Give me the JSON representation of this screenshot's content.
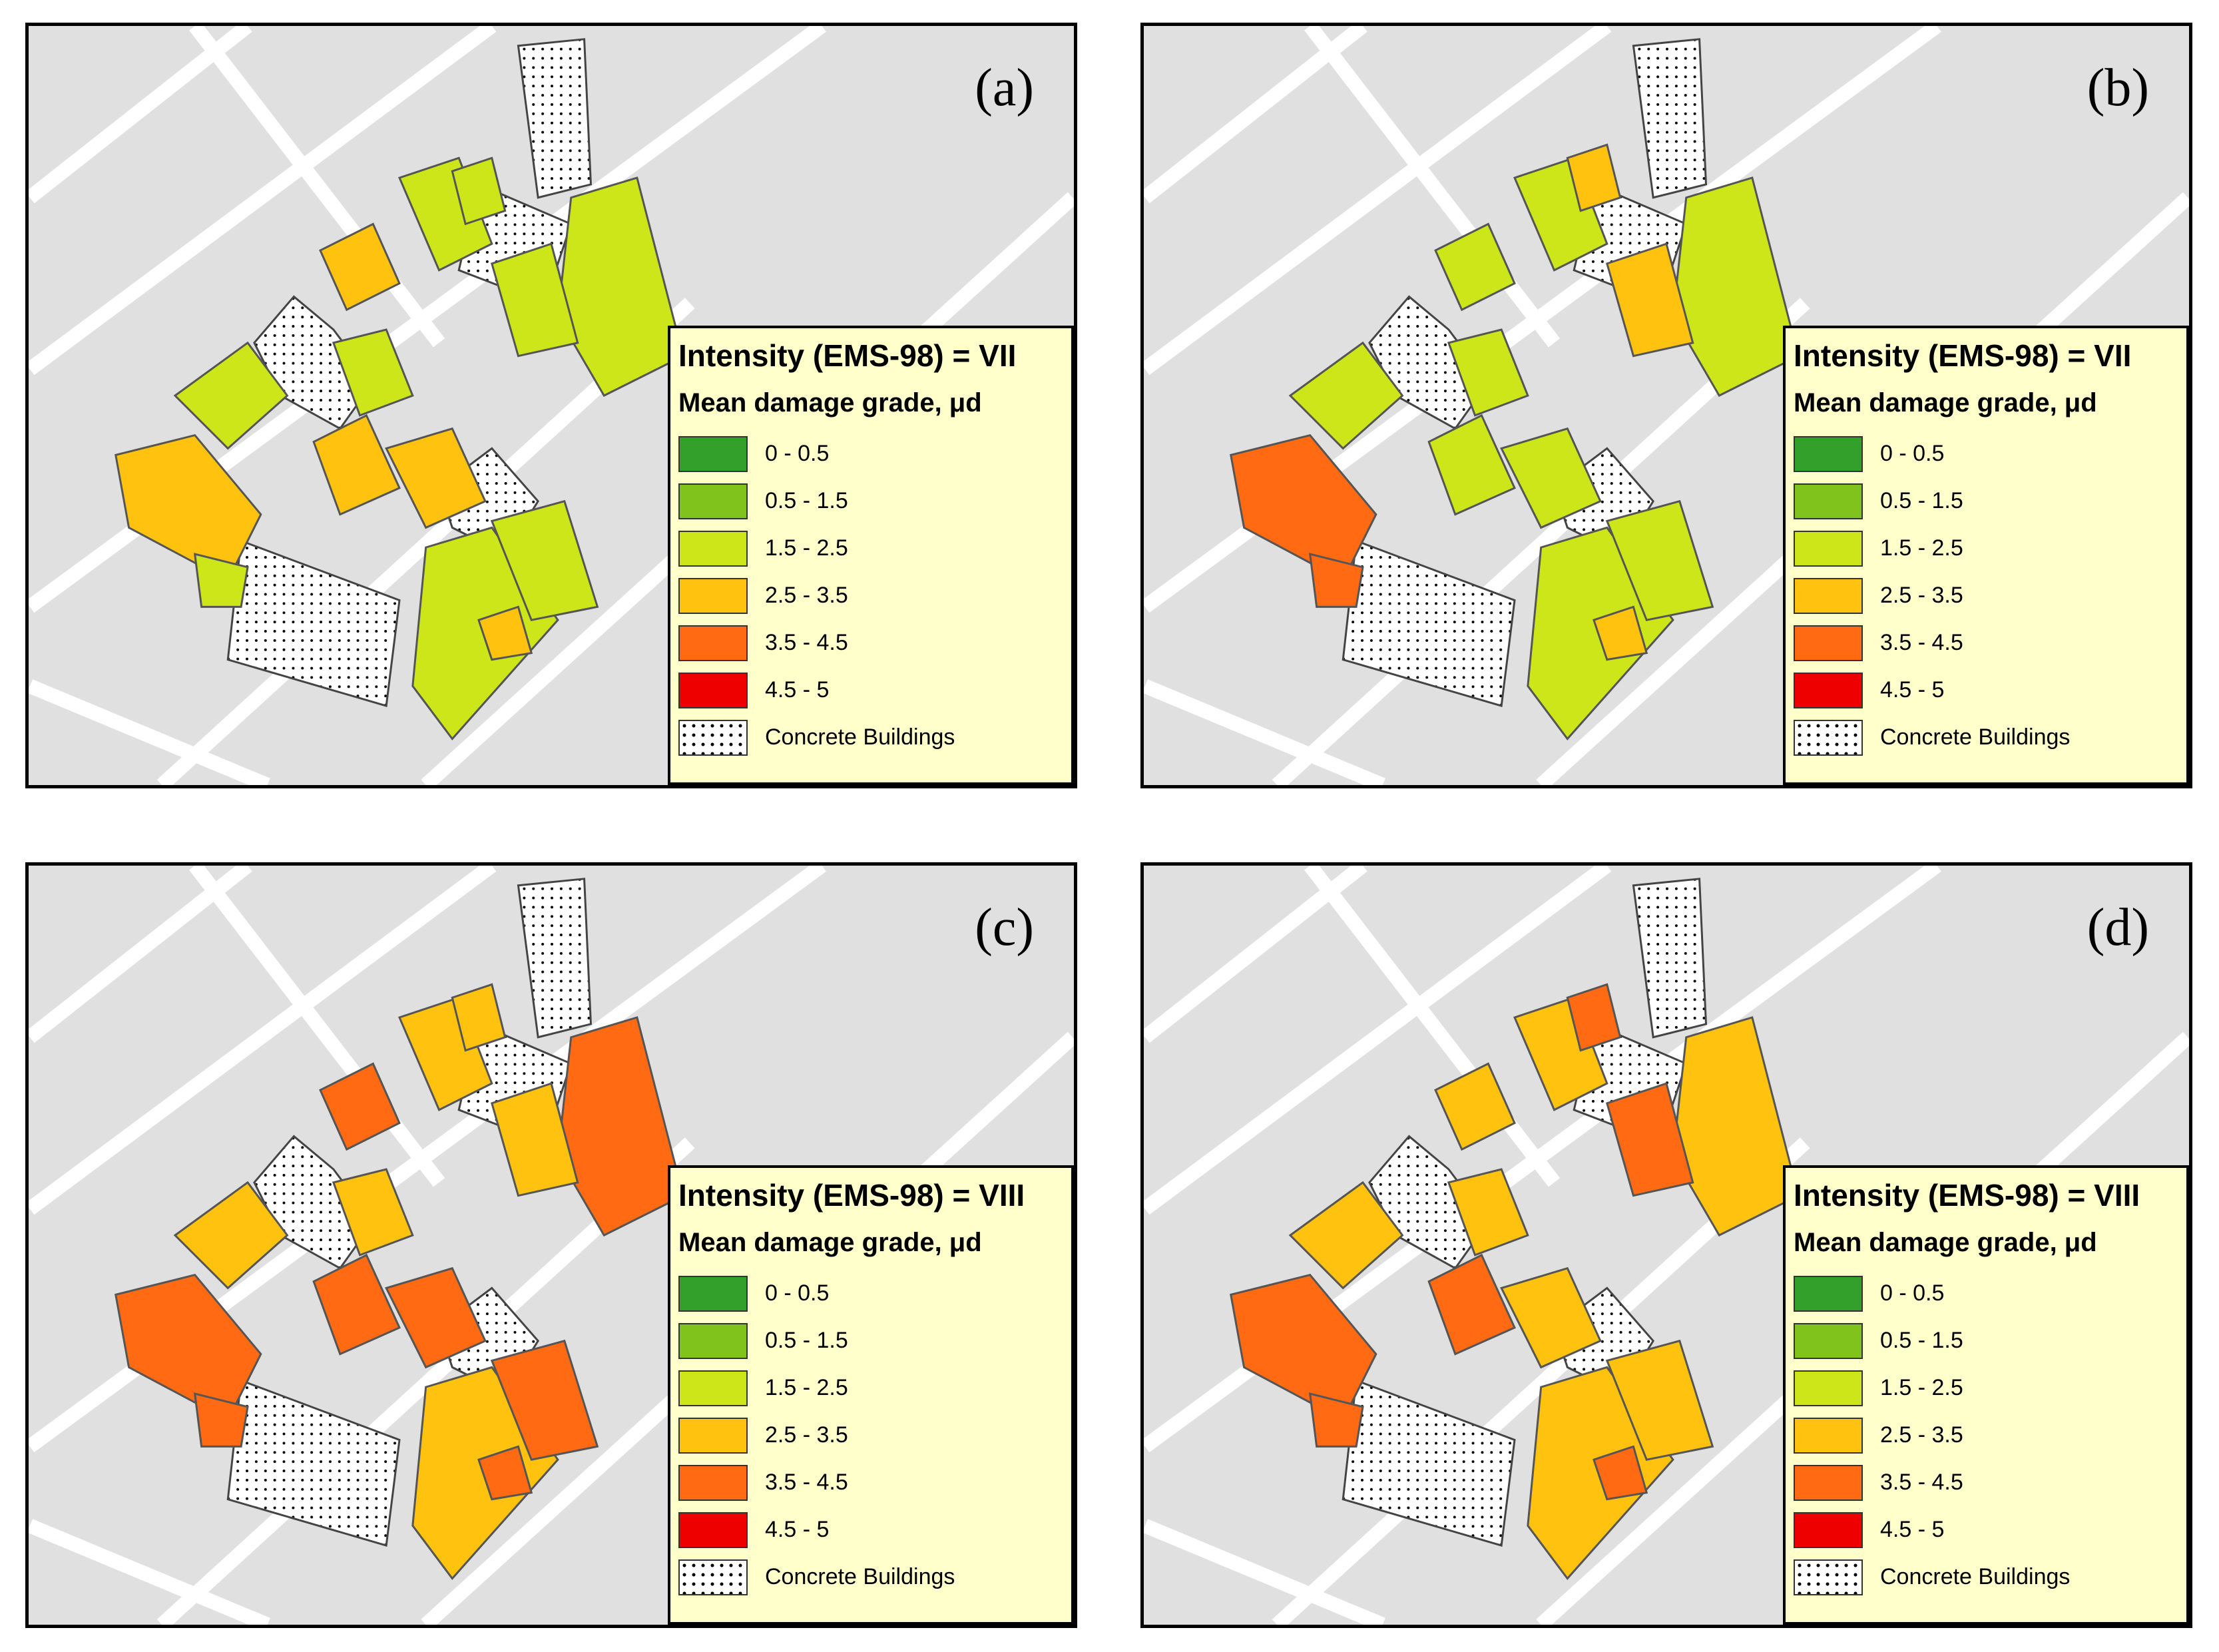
{
  "legend": {
    "title_vii": "Intensity (EMS-98) = VII",
    "title_viii": "Intensity (EMS-98) = VIII",
    "subtitle": "Mean damage grade, μd",
    "classes": [
      {
        "label": "0 - 0.5",
        "color": "#33a02c"
      },
      {
        "label": "0.5 - 1.5",
        "color": "#7fc31c"
      },
      {
        "label": "1.5 - 2.5",
        "color": "#cce619"
      },
      {
        "label": "2.5 - 3.5",
        "color": "#ffc20e"
      },
      {
        "label": "3.5 - 4.5",
        "color": "#ff6a13"
      },
      {
        "label": "4.5 - 5",
        "color": "#ee0000"
      }
    ],
    "concrete_label": "Concrete Buildings"
  },
  "panels": [
    {
      "label": "(a)",
      "intensity": "VII"
    },
    {
      "label": "(b)",
      "intensity": "VII"
    },
    {
      "label": "(c)",
      "intensity": "VIII"
    },
    {
      "label": "(d)",
      "intensity": "VIII"
    }
  ],
  "colors": {
    "background": "#e0e0e0",
    "road": "#ffffff",
    "outline": "#555555",
    "legend_bg": "#ffffcc"
  }
}
